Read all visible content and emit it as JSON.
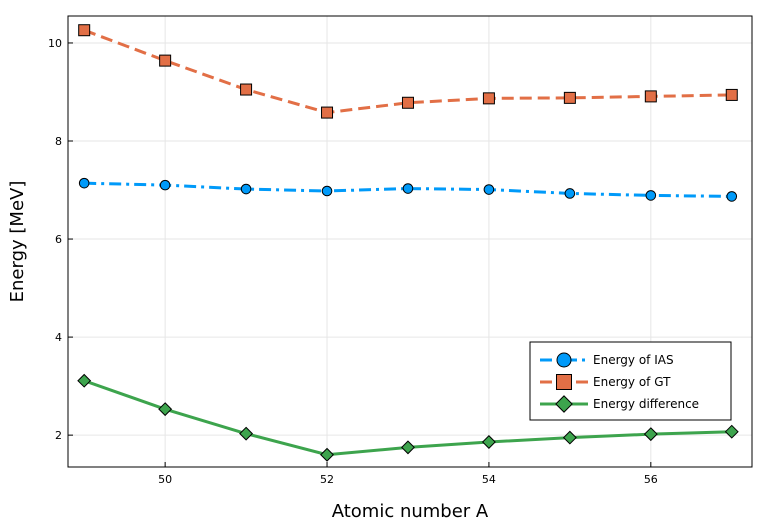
{
  "chart_data": {
    "type": "line",
    "title": "",
    "xlabel": "Atomic number A",
    "ylabel": "Energy [MeV]",
    "x": [
      49,
      50,
      51,
      52,
      53,
      54,
      55,
      56,
      57
    ],
    "xlim": [
      48.8,
      57.25
    ],
    "ylim": [
      1.35,
      10.55
    ],
    "xticks": [
      50,
      52,
      54,
      56
    ],
    "yticks": [
      2,
      4,
      6,
      8,
      10
    ],
    "grid": true,
    "legend_position": "bottom-right",
    "series": [
      {
        "name": "Energy of IAS",
        "values": [
          7.14,
          7.1,
          7.02,
          6.98,
          7.03,
          7.01,
          6.93,
          6.89,
          6.87
        ],
        "color": "#009af9",
        "dash": "dash-dot",
        "marker": "circle"
      },
      {
        "name": "Energy of GT",
        "values": [
          10.26,
          9.64,
          9.05,
          8.58,
          8.78,
          8.87,
          8.88,
          8.91,
          8.94
        ],
        "color": "#e26f46",
        "dash": "dash",
        "marker": "square"
      },
      {
        "name": "Energy difference",
        "values": [
          3.11,
          2.53,
          2.03,
          1.6,
          1.75,
          1.86,
          1.95,
          2.02,
          2.07
        ],
        "color": "#3da44d",
        "dash": "solid",
        "marker": "diamond"
      }
    ]
  }
}
